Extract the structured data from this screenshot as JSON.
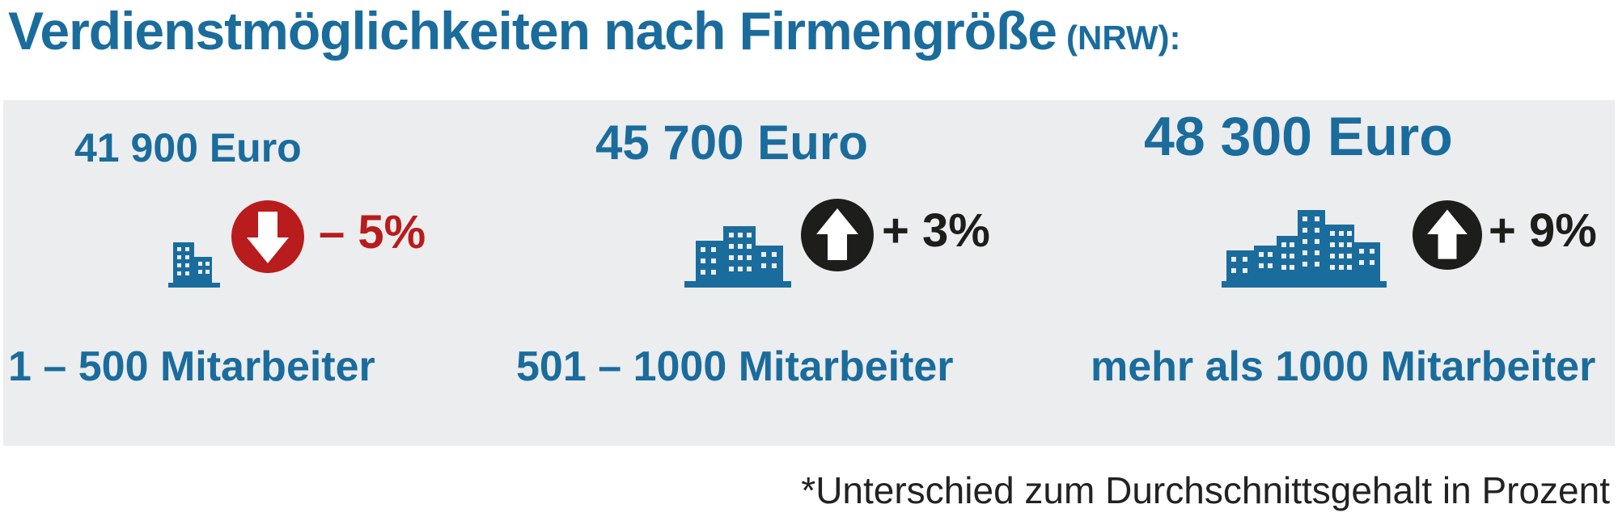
{
  "header": {
    "title": "Verdienstmöglichkeiten nach Firmengröße",
    "region": "(NRW):"
  },
  "colors": {
    "brand_blue": "#1a6c9c",
    "negative_red": "#b81c1c",
    "positive_black": "#1d1d1b",
    "panel_bg": "#ecedef"
  },
  "groups": [
    {
      "amount": "41 900 Euro",
      "change": "– 5%",
      "direction": "down",
      "building_icon": "small-building-icon",
      "size_label": "1 – 500 Mitarbeiter"
    },
    {
      "amount": "45 700 Euro",
      "change": "+ 3%",
      "direction": "up",
      "building_icon": "medium-building-icon",
      "size_label": "501 – 1000 Mitarbeiter"
    },
    {
      "amount": "48 300 Euro",
      "change": "+ 9%",
      "direction": "up",
      "building_icon": "large-building-icon",
      "size_label": "mehr als 1000 Mitarbeiter"
    }
  ],
  "footnote": "*Unterschied zum Durchschnittsgehalt in Prozent"
}
